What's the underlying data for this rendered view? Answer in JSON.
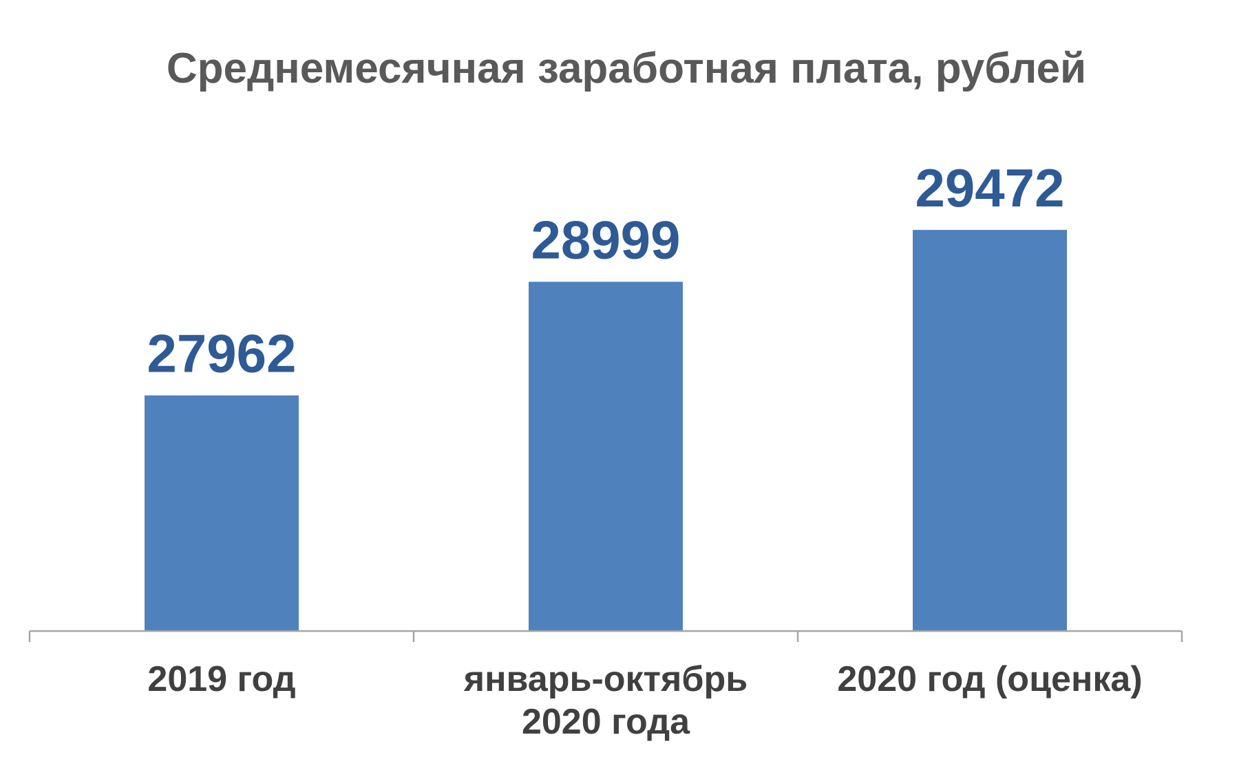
{
  "chart_data": {
    "type": "bar",
    "title": "Среднемесячная заработная плата, рублей",
    "categories": [
      [
        "2019 год"
      ],
      [
        "январь-октябрь",
        "2020 года"
      ],
      [
        "2020 год (оценка)"
      ]
    ],
    "values": [
      27962,
      28999,
      29472
    ],
    "ylim": [
      25812,
      30000
    ],
    "grid": false,
    "legend": "none",
    "colors": {
      "bar": "#4F81BD",
      "data_label": "#2E5A95",
      "title": "#595959",
      "category_label": "#404040",
      "axis": "#A6A6A6"
    }
  }
}
